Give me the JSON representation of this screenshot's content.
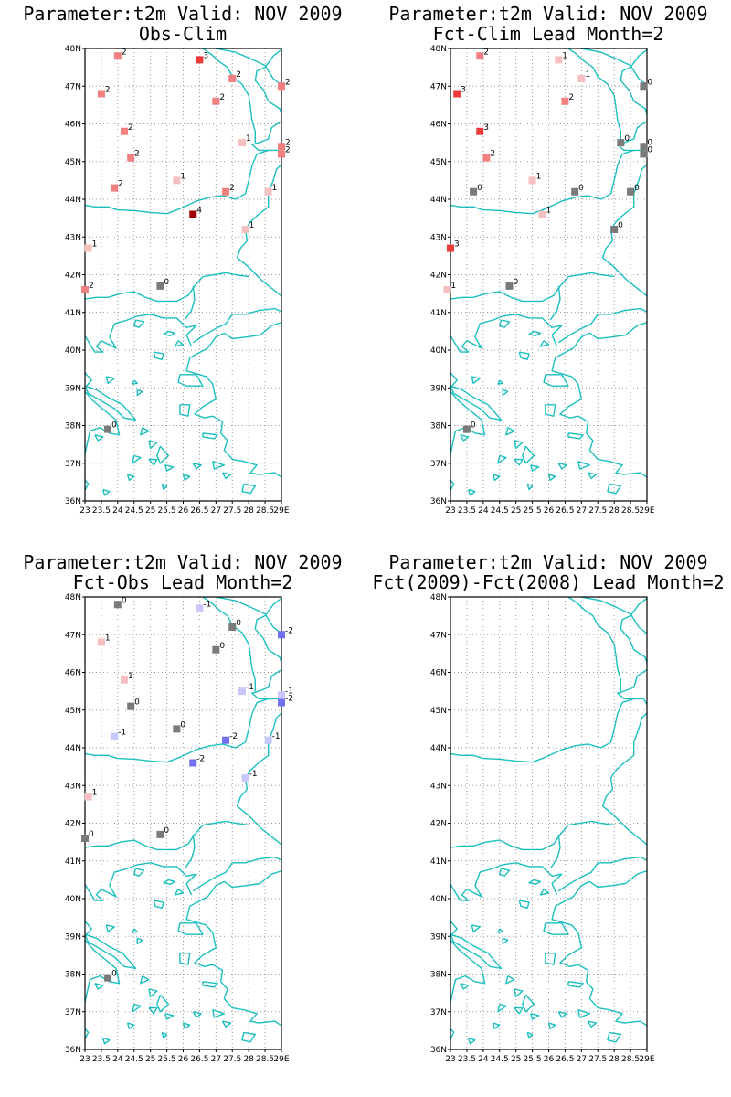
{
  "panels": [
    {
      "title_line1": "Parameter:t2m Valid: NOV 2009",
      "title_line2": "Obs-Clim",
      "stations": [
        {
          "lon": 24.0,
          "lat": 47.8,
          "v": 2
        },
        {
          "lon": 26.5,
          "lat": 47.7,
          "v": 3
        },
        {
          "lon": 27.5,
          "lat": 47.2,
          "v": 2
        },
        {
          "lon": 29.0,
          "lat": 47.0,
          "v": 2
        },
        {
          "lon": 23.5,
          "lat": 46.8,
          "v": 2
        },
        {
          "lon": 27.0,
          "lat": 46.6,
          "v": 2
        },
        {
          "lon": 24.2,
          "lat": 45.8,
          "v": 2
        },
        {
          "lon": 27.8,
          "lat": 45.5,
          "v": 1
        },
        {
          "lon": 29.0,
          "lat": 45.4,
          "v": 2
        },
        {
          "lon": 29.0,
          "lat": 45.2,
          "v": 2
        },
        {
          "lon": 24.4,
          "lat": 45.1,
          "v": 2
        },
        {
          "lon": 25.8,
          "lat": 44.5,
          "v": 1
        },
        {
          "lon": 23.9,
          "lat": 44.3,
          "v": 2
        },
        {
          "lon": 27.3,
          "lat": 44.2,
          "v": 2
        },
        {
          "lon": 28.6,
          "lat": 44.2,
          "v": 1
        },
        {
          "lon": 26.3,
          "lat": 43.6,
          "v": 4
        },
        {
          "lon": 27.9,
          "lat": 43.2,
          "v": 1
        },
        {
          "lon": 23.1,
          "lat": 42.7,
          "v": 1
        },
        {
          "lon": 25.3,
          "lat": 41.7,
          "v": 0
        },
        {
          "lon": 23.0,
          "lat": 41.6,
          "v": 2
        },
        {
          "lon": 23.7,
          "lat": 37.9,
          "v": 0
        }
      ]
    },
    {
      "title_line1": "Parameter:t2m Valid: NOV 2009",
      "title_line2": "Fct-Clim Lead Month=2",
      "stations": [
        {
          "lon": 23.9,
          "lat": 47.8,
          "v": 2
        },
        {
          "lon": 26.3,
          "lat": 47.7,
          "v": 1
        },
        {
          "lon": 27.0,
          "lat": 47.2,
          "v": 1
        },
        {
          "lon": 28.9,
          "lat": 47.0,
          "v": 0
        },
        {
          "lon": 23.2,
          "lat": 46.8,
          "v": 3
        },
        {
          "lon": 26.5,
          "lat": 46.6,
          "v": 2
        },
        {
          "lon": 23.9,
          "lat": 45.8,
          "v": 3
        },
        {
          "lon": 28.2,
          "lat": 45.5,
          "v": 0
        },
        {
          "lon": 28.9,
          "lat": 45.4,
          "v": 0
        },
        {
          "lon": 28.9,
          "lat": 45.2,
          "v": 0
        },
        {
          "lon": 24.1,
          "lat": 45.1,
          "v": 2
        },
        {
          "lon": 25.5,
          "lat": 44.5,
          "v": 1
        },
        {
          "lon": 23.7,
          "lat": 44.2,
          "v": 0
        },
        {
          "lon": 26.8,
          "lat": 44.2,
          "v": 0
        },
        {
          "lon": 28.5,
          "lat": 44.2,
          "v": 0
        },
        {
          "lon": 25.8,
          "lat": 43.6,
          "v": 1
        },
        {
          "lon": 28.0,
          "lat": 43.2,
          "v": 0
        },
        {
          "lon": 23.0,
          "lat": 42.7,
          "v": 3
        },
        {
          "lon": 24.8,
          "lat": 41.7,
          "v": 0
        },
        {
          "lon": 22.9,
          "lat": 41.6,
          "v": 1
        },
        {
          "lon": 23.5,
          "lat": 37.9,
          "v": 0
        }
      ]
    },
    {
      "title_line1": "Parameter:t2m Valid: NOV 2009",
      "title_line2": "Fct-Obs Lead Month=2",
      "stations": [
        {
          "lon": 24.0,
          "lat": 47.8,
          "v": 0
        },
        {
          "lon": 26.5,
          "lat": 47.7,
          "v": -1
        },
        {
          "lon": 27.5,
          "lat": 47.2,
          "v": 0
        },
        {
          "lon": 29.0,
          "lat": 47.0,
          "v": -2
        },
        {
          "lon": 23.5,
          "lat": 46.8,
          "v": 1
        },
        {
          "lon": 27.0,
          "lat": 46.6,
          "v": 0
        },
        {
          "lon": 24.2,
          "lat": 45.8,
          "v": 1
        },
        {
          "lon": 27.8,
          "lat": 45.5,
          "v": -1
        },
        {
          "lon": 29.0,
          "lat": 45.4,
          "v": -1
        },
        {
          "lon": 29.0,
          "lat": 45.2,
          "v": -2
        },
        {
          "lon": 24.4,
          "lat": 45.1,
          "v": 0
        },
        {
          "lon": 25.8,
          "lat": 44.5,
          "v": 0
        },
        {
          "lon": 23.9,
          "lat": 44.3,
          "v": -1
        },
        {
          "lon": 27.3,
          "lat": 44.2,
          "v": -2
        },
        {
          "lon": 28.6,
          "lat": 44.2,
          "v": -1
        },
        {
          "lon": 26.3,
          "lat": 43.6,
          "v": -2
        },
        {
          "lon": 27.9,
          "lat": 43.2,
          "v": -1
        },
        {
          "lon": 23.1,
          "lat": 42.7,
          "v": 1
        },
        {
          "lon": 25.3,
          "lat": 41.7,
          "v": 0
        },
        {
          "lon": 23.0,
          "lat": 41.6,
          "v": 0
        },
        {
          "lon": 23.7,
          "lat": 37.9,
          "v": 0
        }
      ]
    },
    {
      "title_line1": "Parameter:t2m Valid: NOV 2009",
      "title_line2": "Fct(2009)-Fct(2008) Lead Month=2",
      "stations": []
    }
  ],
  "axes": {
    "lon_min": 23,
    "lon_max": 29,
    "lat_min": 36,
    "lat_max": 48,
    "lon_labels": [
      "23",
      "23.5",
      "24",
      "24.5",
      "25",
      "25.5",
      "26",
      "26.5",
      "27",
      "27.5",
      "28",
      "28.5",
      "29E"
    ],
    "lat_labels": [
      "36N",
      "37N",
      "38N",
      "39N",
      "40N",
      "41N",
      "42N",
      "43N",
      "44N",
      "45N",
      "46N",
      "47N",
      "48N"
    ]
  },
  "colors": {
    "coast": "#1bbfbf",
    "grid": "#999999",
    "zero": "#7a7a7a",
    "pos1": "#f7c0c0",
    "pos2": "#f28080",
    "pos3": "#ee3a3a",
    "pos4": "#a00000",
    "neg1": "#c8c8ff",
    "neg2": "#7070f0"
  }
}
